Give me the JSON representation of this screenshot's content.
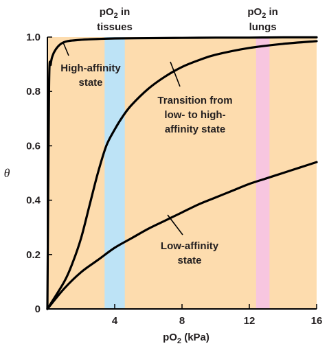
{
  "chart_data": {
    "type": "line",
    "title": "",
    "xlabel": "pO",
    "xlabel_sub": "2",
    "xlabel_unit": " (kPa)",
    "ylabel": "θ",
    "xlim": [
      0,
      16
    ],
    "ylim": [
      0,
      1.0
    ],
    "x_ticks": [
      4,
      8,
      12,
      16
    ],
    "y_ticks": [
      0,
      0.2,
      0.4,
      0.6,
      0.8,
      1.0
    ],
    "x_tick_labels": [
      "4",
      "8",
      "12",
      "16"
    ],
    "y_tick_labels": [
      "0",
      "0.2",
      "0.4",
      "0.6",
      "0.8",
      "1.0"
    ],
    "grid": false,
    "colors": {
      "background": "#fddcae",
      "tissues_band": "#bde3f6",
      "lungs_band": "#f7c6e0",
      "curve": "#000000"
    },
    "bands": [
      {
        "label_line1_main": "pO",
        "label_line1_sub": "2",
        "label_line1_rest": " in",
        "label_line2": "tissues",
        "x_range": [
          3.4,
          4.6
        ],
        "color": "#bde3f6"
      },
      {
        "label_line1_main": "pO",
        "label_line1_sub": "2",
        "label_line1_rest": " in",
        "label_line2": "lungs",
        "x_range": [
          12.4,
          13.2
        ],
        "color": "#f7c6e0"
      }
    ],
    "series": [
      {
        "name": "High-affinity state",
        "label_lines": [
          "High-affinity",
          "state"
        ],
        "x": [
          0,
          0.1,
          0.2,
          0.3,
          0.5,
          0.8,
          1.2,
          2,
          3,
          4,
          6,
          8,
          10,
          12,
          14,
          16
        ],
        "y": [
          0,
          0.82,
          0.9,
          0.93,
          0.955,
          0.975,
          0.985,
          0.99,
          0.993,
          0.995,
          0.996,
          0.997,
          0.998,
          0.998,
          0.999,
          0.999
        ]
      },
      {
        "name": "Transition from low- to high-affinity state",
        "label_lines": [
          "Transition from",
          "low- to high-",
          "affinity state"
        ],
        "x": [
          0,
          1,
          1.5,
          2,
          2.5,
          3,
          3.5,
          4,
          4.5,
          5,
          6,
          7,
          8,
          9,
          10,
          12,
          14,
          16
        ],
        "y": [
          0,
          0.1,
          0.17,
          0.26,
          0.38,
          0.5,
          0.6,
          0.66,
          0.71,
          0.75,
          0.81,
          0.855,
          0.89,
          0.915,
          0.935,
          0.96,
          0.975,
          0.985
        ]
      },
      {
        "name": "Low-affinity state",
        "label_lines": [
          "Low-affinity",
          "state"
        ],
        "x": [
          0,
          1,
          2,
          3,
          4,
          5,
          6,
          7,
          8,
          9,
          10,
          11,
          12,
          13,
          14,
          15,
          16
        ],
        "y": [
          0,
          0.075,
          0.135,
          0.18,
          0.225,
          0.26,
          0.295,
          0.325,
          0.355,
          0.385,
          0.41,
          0.435,
          0.46,
          0.48,
          0.5,
          0.52,
          0.54
        ]
      }
    ]
  }
}
